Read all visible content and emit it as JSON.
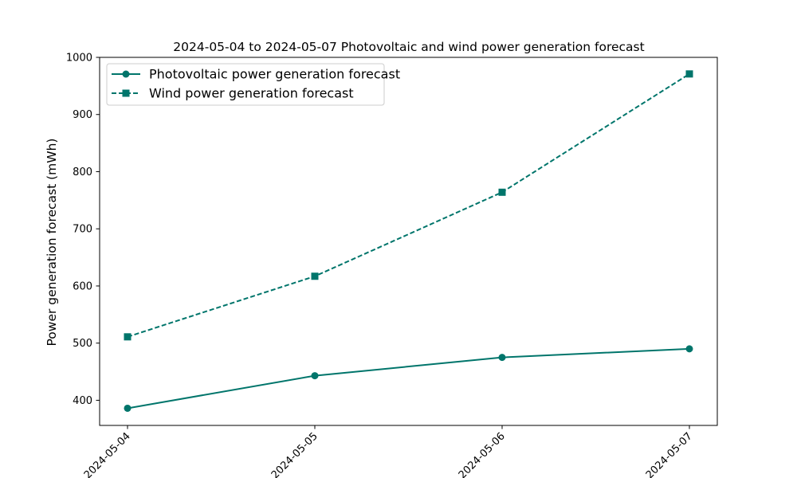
{
  "chart_data": {
    "type": "line",
    "title": "2024-05-04 to 2024-05-07 Photovoltaic and wind power generation forecast",
    "xlabel": "",
    "ylabel": "Power generation forecast (mWh)",
    "categories": [
      "2024-05-04",
      "2024-05-05",
      "2024-05-06",
      "2024-05-07"
    ],
    "ylim": [
      356,
      1000
    ],
    "yticks": [
      400,
      500,
      600,
      700,
      800,
      900,
      1000
    ],
    "grid": false,
    "legend_position": "top-left",
    "series": [
      {
        "name": "Photovoltaic power generation forecast",
        "values": [
          386,
          443,
          475,
          490
        ],
        "color": "#00756b",
        "line_style": "solid",
        "marker": "circle"
      },
      {
        "name": "Wind power generation forecast",
        "values": [
          511,
          617,
          764,
          971
        ],
        "color": "#00756b",
        "line_style": "dashed",
        "marker": "square"
      }
    ]
  }
}
